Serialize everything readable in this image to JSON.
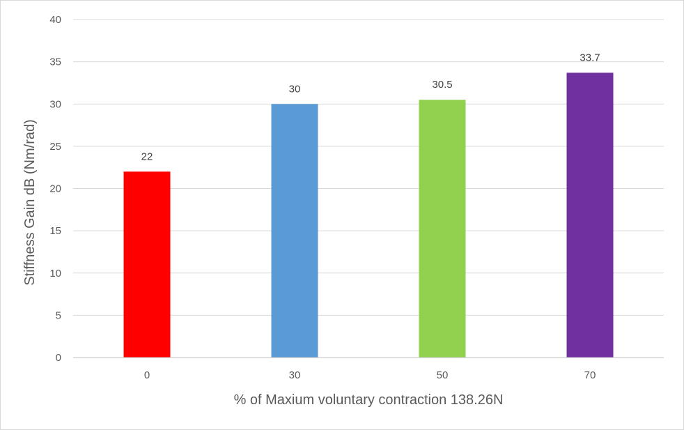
{
  "chart_data": {
    "type": "bar",
    "title": "",
    "xlabel": "% of Maxium voluntary contraction 138.26N",
    "ylabel": "Stiffness Gain dB (Nm/rad)",
    "categories": [
      "0",
      "30",
      "50",
      "70"
    ],
    "values": [
      22,
      30,
      30.5,
      33.7
    ],
    "data_labels": [
      "22",
      "30",
      "30.5",
      "33.7"
    ],
    "colors": [
      "#FF0000",
      "#5B9BD5",
      "#92D050",
      "#7030A0"
    ],
    "ylim": [
      0,
      40
    ],
    "yticks": [
      0,
      5,
      10,
      15,
      20,
      25,
      30,
      35,
      40
    ],
    "ytick_labels": [
      "0",
      "5",
      "10",
      "15",
      "20",
      "25",
      "30",
      "35",
      "40"
    ],
    "grid": true,
    "legend": "none"
  }
}
